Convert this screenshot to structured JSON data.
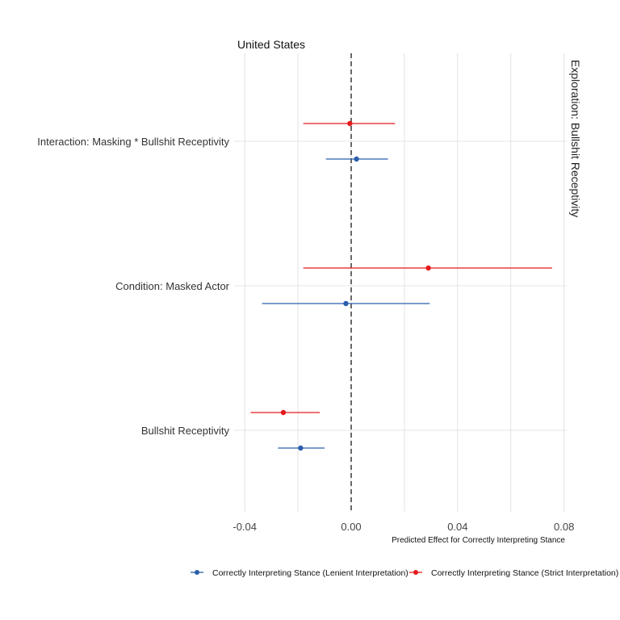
{
  "chart_data": {
    "type": "scatter",
    "title": "United States",
    "facet_label": "Exploration: Bullshit Receptivity",
    "xlabel": "Predicted Effect for Correctly Interpreting Stance",
    "ylabel": "",
    "xlim": [
      -0.044,
      0.081
    ],
    "xticks": [
      -0.04,
      0.0,
      0.04,
      0.08
    ],
    "xtick_labels": [
      "-0.04",
      "0.00",
      "0.04",
      "0.08"
    ],
    "grid": true,
    "reference_line": 0,
    "legend_position": "bottom",
    "categories": [
      "Interaction: Masking * Bullshit Receptivity",
      "Condition: Masked Actor",
      "Bullshit Receptivity"
    ],
    "series": [
      {
        "name": "Correctly Interpreting Stance (Lenient Interpretation)",
        "color": "#2c5fad",
        "points": [
          {
            "category": "Interaction: Masking * Bullshit Receptivity",
            "estimate": 0.002,
            "low": -0.0095,
            "high": 0.0138
          },
          {
            "category": "Condition: Masked Actor",
            "estimate": -0.002,
            "low": -0.0335,
            "high": 0.0295
          },
          {
            "category": "Bullshit Receptivity",
            "estimate": -0.019,
            "low": -0.0275,
            "high": -0.01
          }
        ]
      },
      {
        "name": "Correctly Interpreting Stance (Strict Interpretation)",
        "color": "#e41a1c",
        "points": [
          {
            "category": "Interaction: Masking * Bullshit Receptivity",
            "estimate": -0.0005,
            "low": -0.018,
            "high": 0.0165
          },
          {
            "category": "Condition: Masked Actor",
            "estimate": 0.029,
            "low": -0.018,
            "high": 0.0755
          },
          {
            "category": "Bullshit Receptivity",
            "estimate": -0.0255,
            "low": -0.0378,
            "high": -0.0118
          }
        ]
      }
    ]
  }
}
